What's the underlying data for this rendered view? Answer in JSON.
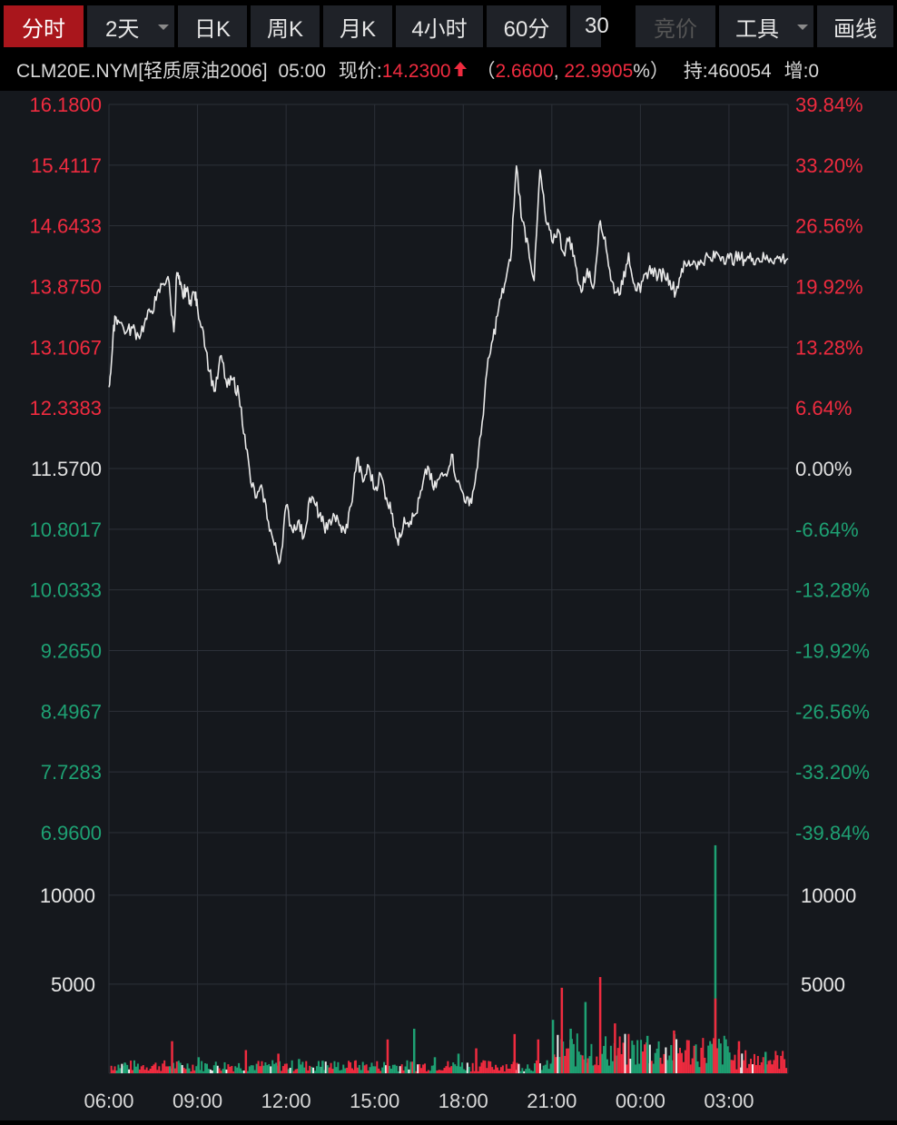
{
  "toolbar": {
    "tabs": [
      {
        "label": "分时",
        "active": true,
        "dropdown": false
      },
      {
        "label": "2天",
        "active": false,
        "dropdown": true
      },
      {
        "label": "日K",
        "active": false,
        "dropdown": false
      },
      {
        "label": "周K",
        "active": false,
        "dropdown": false
      },
      {
        "label": "月K",
        "active": false,
        "dropdown": false
      },
      {
        "label": "4小时",
        "active": false,
        "dropdown": false
      },
      {
        "label": "60分",
        "active": false,
        "dropdown": false
      },
      {
        "label": "30",
        "active": false,
        "dropdown": false
      },
      {
        "label": "竞价",
        "active": false,
        "dropdown": false,
        "disabled": true
      },
      {
        "label": "工具",
        "active": false,
        "dropdown": true
      },
      {
        "label": "画线",
        "active": false,
        "dropdown": false
      }
    ]
  },
  "quote": {
    "symbol": "CLM20E.NYM[轻质原油2006]",
    "time": "05:00",
    "price_label": "现价:",
    "price": "14.2300",
    "arrow": "up-arrow-icon",
    "change": "2.6600",
    "change_pct": "22.9905",
    "pct_sign": "%",
    "open_paren": "（",
    "comma": ", ",
    "close_paren": "）",
    "holding_label": "持:",
    "holding": "460054",
    "increase_label": "增:",
    "increase": "0"
  },
  "colors": {
    "up": "#ef2b3f",
    "down": "#1ea173",
    "neutral": "#e0e0e0",
    "line": "#e8e8e8",
    "grid": "#2c3038",
    "bg": "#15181d",
    "active_tab": "#a9161c"
  },
  "chart_data": {
    "type": "line",
    "title": "",
    "xlabel": "",
    "ylabel": "",
    "x_ticks": [
      "06:00",
      "09:00",
      "12:00",
      "15:00",
      "18:00",
      "21:00",
      "00:00",
      "03:00"
    ],
    "x_range_hours": [
      0,
      23
    ],
    "base_price": 11.57,
    "ylim": [
      6.96,
      16.18
    ],
    "y_ticks_left": [
      "16.1800",
      "15.4117",
      "14.6433",
      "13.8750",
      "13.1067",
      "12.3383",
      "11.5700",
      "10.8017",
      "10.0333",
      "9.2650",
      "8.4967",
      "7.7283",
      "6.9600"
    ],
    "y_ticks_right": [
      "39.84%",
      "33.20%",
      "26.56%",
      "19.92%",
      "13.28%",
      "6.64%",
      "0.00%",
      "-6.64%",
      "-13.28%",
      "-19.92%",
      "-26.56%",
      "-33.20%",
      "-39.84%"
    ],
    "price_series": {
      "x_hours": [
        0,
        0.1,
        0.2,
        0.3,
        0.6,
        0.8,
        1.0,
        1.2,
        1.4,
        1.6,
        1.8,
        2.0,
        2.2,
        2.3,
        2.4,
        2.5,
        2.6,
        2.75,
        2.9,
        3.0,
        3.2,
        3.4,
        3.6,
        3.8,
        4.0,
        4.2,
        4.4,
        4.6,
        4.8,
        5.0,
        5.2,
        5.4,
        5.6,
        5.8,
        6.0,
        6.2,
        6.4,
        6.6,
        6.8,
        7.0,
        7.2,
        7.4,
        7.6,
        7.8,
        8.0,
        8.2,
        8.4,
        8.6,
        8.8,
        9.0,
        9.2,
        9.4,
        9.6,
        9.8,
        10.0,
        10.2,
        10.4,
        10.6,
        10.8,
        11.0,
        11.2,
        11.4,
        11.6,
        11.8,
        12.0,
        12.2,
        12.4,
        12.6,
        12.8,
        13.0,
        13.2,
        13.4,
        13.6,
        13.8,
        14.0,
        14.2,
        14.4,
        14.6,
        14.8,
        15.0,
        15.2,
        15.4,
        15.6,
        15.8,
        16.0,
        16.2,
        16.4,
        16.6,
        16.8,
        17.0,
        17.2,
        17.4,
        17.6,
        17.8,
        18.0,
        18.2,
        18.4,
        18.6,
        18.8,
        19.0,
        19.2,
        19.4,
        19.6,
        19.8,
        20.0,
        20.2,
        20.4,
        20.6,
        20.8,
        21.0,
        21.2,
        21.4,
        21.6,
        21.8,
        22.0,
        22.2,
        22.4,
        22.6,
        22.8,
        23.0
      ],
      "values": [
        12.6,
        13.0,
        13.5,
        13.45,
        13.3,
        13.35,
        13.25,
        13.4,
        13.55,
        13.7,
        13.9,
        14.0,
        13.3,
        14.05,
        13.9,
        13.75,
        13.85,
        13.7,
        13.8,
        13.6,
        13.3,
        12.8,
        12.55,
        13.0,
        12.6,
        12.7,
        12.5,
        12.0,
        11.4,
        11.2,
        11.3,
        10.9,
        10.6,
        10.4,
        11.1,
        10.8,
        10.9,
        10.7,
        11.2,
        11.1,
        10.9,
        10.8,
        11.0,
        10.85,
        10.75,
        11.1,
        11.7,
        11.4,
        11.6,
        11.3,
        11.5,
        11.2,
        11.0,
        10.6,
        10.95,
        10.9,
        11.0,
        11.3,
        11.6,
        11.3,
        11.45,
        11.5,
        11.75,
        11.4,
        11.25,
        11.1,
        11.4,
        12.0,
        12.8,
        13.2,
        13.6,
        13.9,
        14.2,
        15.4,
        14.7,
        14.4,
        13.95,
        15.35,
        14.7,
        14.45,
        14.6,
        14.3,
        14.5,
        14.15,
        13.8,
        14.1,
        13.85,
        14.65,
        14.5,
        13.95,
        13.8,
        13.9,
        14.3,
        13.9,
        13.8,
        14.05,
        14.1,
        14.0,
        14.05,
        13.95,
        13.8,
        14.1,
        14.15,
        14.2,
        14.15,
        14.25,
        14.2,
        14.3,
        14.25,
        14.23,
        14.23,
        14.23,
        14.23,
        14.23,
        14.23,
        14.23,
        14.23,
        14.23,
        14.23,
        14.23
      ]
    },
    "volume": {
      "ylim": [
        0,
        13000
      ],
      "y_ticks": [
        "10000",
        "5000"
      ],
      "bars": [
        {
          "x": 0.5,
          "v": 600,
          "dir": "down"
        },
        {
          "x": 2.1,
          "v": 1800,
          "dir": "up"
        },
        {
          "x": 3.0,
          "v": 900,
          "dir": "down"
        },
        {
          "x": 4.6,
          "v": 1300,
          "dir": "up"
        },
        {
          "x": 5.7,
          "v": 1100,
          "dir": "up"
        },
        {
          "x": 6.4,
          "v": 800,
          "dir": "down"
        },
        {
          "x": 7.2,
          "v": 700,
          "dir": "down"
        },
        {
          "x": 8.3,
          "v": 700,
          "dir": "up"
        },
        {
          "x": 9.4,
          "v": 1900,
          "dir": "up"
        },
        {
          "x": 10.3,
          "v": 2500,
          "dir": "down"
        },
        {
          "x": 11.0,
          "v": 900,
          "dir": "down"
        },
        {
          "x": 11.8,
          "v": 1100,
          "dir": "down"
        },
        {
          "x": 12.4,
          "v": 1400,
          "dir": "up"
        },
        {
          "x": 13.7,
          "v": 2200,
          "dir": "up"
        },
        {
          "x": 14.5,
          "v": 1900,
          "dir": "up"
        },
        {
          "x": 15.0,
          "v": 3000,
          "dir": "down"
        },
        {
          "x": 15.3,
          "v": 4800,
          "dir": "up"
        },
        {
          "x": 15.6,
          "v": 2500,
          "dir": "down"
        },
        {
          "x": 16.1,
          "v": 4000,
          "dir": "down"
        },
        {
          "x": 16.6,
          "v": 5400,
          "dir": "up"
        },
        {
          "x": 17.1,
          "v": 2800,
          "dir": "up"
        },
        {
          "x": 18.2,
          "v": 2100,
          "dir": "down"
        },
        {
          "x": 19.1,
          "v": 2400,
          "dir": "up"
        },
        {
          "x": 20.5,
          "v": 12800,
          "dir": "down"
        },
        {
          "x": 20.5,
          "v": 4200,
          "dir": "up"
        },
        {
          "x": 21.3,
          "v": 1800,
          "dir": "up"
        },
        {
          "x": 22.2,
          "v": 1200,
          "dir": "down"
        }
      ]
    }
  }
}
